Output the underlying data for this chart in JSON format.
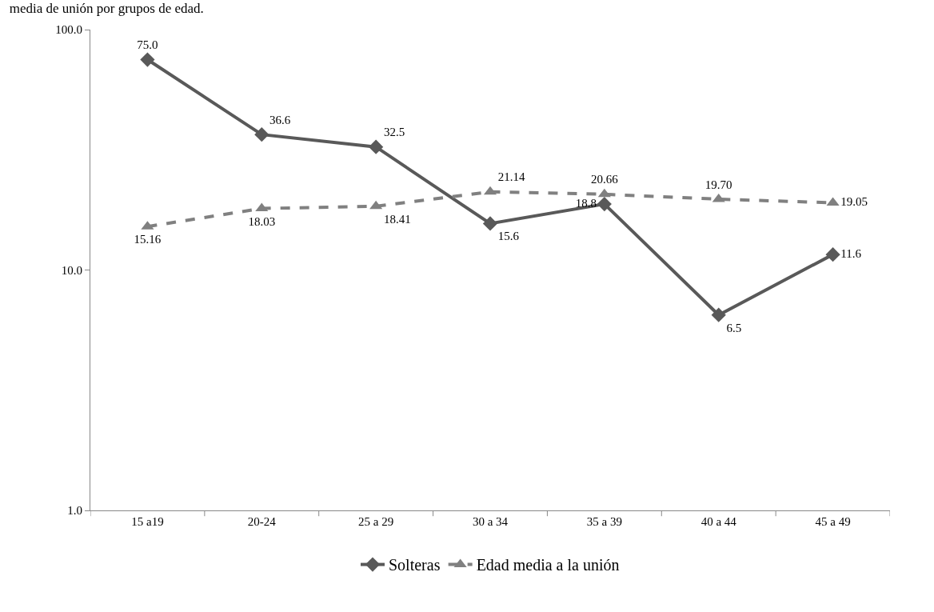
{
  "chart_data": {
    "type": "line",
    "title": "media de unión por grupos de edad.",
    "categories": [
      "15 a19",
      "20-24",
      "25 a 29",
      "30 a 34",
      "35 a 39",
      "40 a 44",
      "45 a 49"
    ],
    "series": [
      {
        "name": "Solteras",
        "color": "#595959",
        "marker": "diamond",
        "line_style": "solid",
        "values": [
          75.0,
          36.6,
          32.5,
          15.6,
          18.8,
          6.5,
          11.6
        ],
        "value_labels": [
          "75.0",
          "36.6",
          "32.5",
          "15.6",
          "18.8",
          "6.5",
          "11.6"
        ]
      },
      {
        "name": "Edad media a la unión",
        "color": "#808080",
        "marker": "triangle",
        "line_style": "dashed",
        "values": [
          15.16,
          18.03,
          18.41,
          21.14,
          20.66,
          19.7,
          19.05
        ],
        "value_labels": [
          "15.16",
          "18.03",
          "18.41",
          "21.14",
          "20.66",
          "19.70",
          "19.05"
        ]
      }
    ],
    "log": "y",
    "ylim": [
      1,
      100
    ],
    "yticks": [
      {
        "value": 1,
        "label": "1.0"
      },
      {
        "value": 10,
        "label": "10.0"
      },
      {
        "value": 100,
        "label": "100.0"
      }
    ],
    "legend": "bottom"
  }
}
